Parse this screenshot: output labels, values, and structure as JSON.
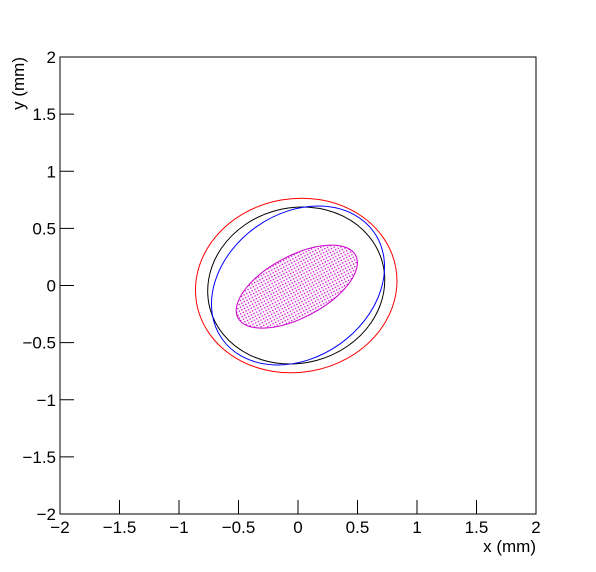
{
  "chart_data": {
    "type": "ellipse",
    "x_label": "x (mm)",
    "y_label": "y (mm)",
    "xlim": [
      -2,
      2
    ],
    "ylim": [
      -2,
      2
    ],
    "xticks": [
      -2,
      -1.5,
      -1,
      -0.5,
      0,
      0.5,
      1,
      1.5,
      2
    ],
    "yticks": [
      -2,
      -1.5,
      -1,
      -0.5,
      0,
      0.5,
      1,
      1.5,
      2
    ],
    "grid": false,
    "ellipses": [
      {
        "color": "#ff0000",
        "cx": -0.015,
        "cy": 0.0,
        "rx": 0.85,
        "ry": 0.76,
        "angle": 10,
        "filled": false
      },
      {
        "color": "#000000",
        "cx": -0.015,
        "cy": 0.0,
        "rx": 0.75,
        "ry": 0.68,
        "angle": 15,
        "filled": false
      },
      {
        "color": "#0000ff",
        "cx": 0.0,
        "cy": 0.0,
        "rx": 0.78,
        "ry": 0.63,
        "angle": 35,
        "filled": false
      },
      {
        "color": "#cc00cc",
        "cx": -0.01,
        "cy": -0.01,
        "rx": 0.56,
        "ry": 0.27,
        "angle": 28,
        "filled": true
      }
    ]
  }
}
